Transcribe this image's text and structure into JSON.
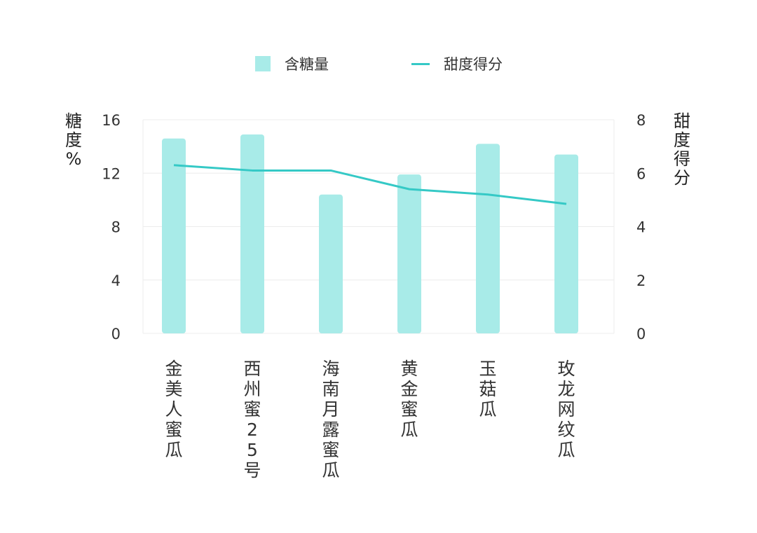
{
  "chart_data": {
    "type": "bar+line",
    "title": "",
    "categories": [
      "金美人蜜瓜",
      "西州蜜25号",
      "海南月露蜜瓜",
      "黄金蜜瓜",
      "玉菇瓜",
      "玫龙网纹瓜"
    ],
    "series": [
      {
        "name": "含糖量",
        "type": "bar",
        "axis": "left",
        "color": "#a8ebe8",
        "values": [
          14.6,
          14.9,
          10.4,
          11.9,
          14.2,
          13.4
        ]
      },
      {
        "name": "甜度得分",
        "type": "line",
        "axis": "right",
        "color": "#35c9c6",
        "values": [
          6.3,
          6.1,
          6.1,
          5.4,
          5.2,
          4.85
        ]
      }
    ],
    "ylabel_left": "糖度%",
    "ylabel_right": "甜度得分",
    "ylim_left": [
      0,
      16
    ],
    "ylim_right": [
      0,
      8
    ],
    "yticks_left": [
      "0",
      "4",
      "8",
      "12",
      "16"
    ],
    "yticks_right": [
      "0",
      "2",
      "4",
      "6",
      "8"
    ],
    "grid": true,
    "legend_position": "top"
  },
  "legend": {
    "bar_label": "含糖量",
    "line_label": "甜度得分"
  },
  "axes": {
    "left_label_chars": [
      "糖",
      "度",
      "%"
    ],
    "right_label_chars": [
      "甜",
      "度",
      "得",
      "分"
    ]
  },
  "x_labels": [
    "金美人蜜瓜",
    "西州蜜 25 号",
    "海南月露蜜瓜",
    "黄金蜜瓜",
    "玉菇瓜",
    "玫龙网纹瓜"
  ]
}
